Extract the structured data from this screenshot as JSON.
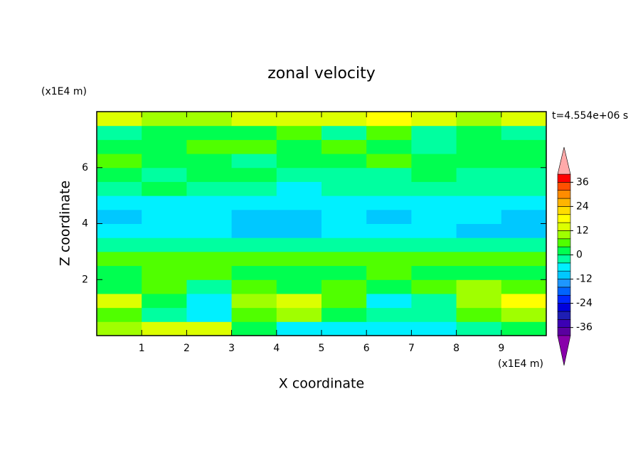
{
  "chart_data": {
    "type": "contour",
    "title": "zonal velocity",
    "xlabel": "X coordinate",
    "ylabel": "Z coordinate",
    "x_unit": "(x1E4 m)",
    "y_unit": "(x1E4 m)",
    "time_label": "t=4.554e+06 s",
    "xlim": [
      0,
      10
    ],
    "ylim": [
      0,
      8
    ],
    "xticks": [
      1,
      2,
      3,
      4,
      5,
      6,
      7,
      8,
      9
    ],
    "yticks": [
      2,
      4,
      6
    ],
    "x": [
      0.5,
      1.5,
      2.5,
      3.5,
      4.5,
      5.5,
      6.5,
      7.5,
      8.5,
      9.5
    ],
    "y": [
      0.25,
      0.75,
      1.25,
      1.75,
      2.25,
      2.75,
      3.25,
      3.75,
      4.25,
      4.75,
      5.25,
      5.75,
      6.25,
      6.75,
      7.25,
      7.75
    ],
    "z": [
      [
        10,
        14,
        12,
        2,
        -6,
        -6,
        -6,
        -8,
        -4,
        2
      ],
      [
        6,
        -2,
        -6,
        6,
        10,
        2,
        -4,
        -2,
        6,
        10
      ],
      [
        14,
        2,
        -6,
        10,
        12,
        4,
        -6,
        -2,
        10,
        16
      ],
      [
        2,
        6,
        -2,
        4,
        2,
        6,
        2,
        6,
        10,
        6
      ],
      [
        2,
        6,
        6,
        2,
        2,
        2,
        6,
        2,
        2,
        2
      ],
      [
        6,
        6,
        6,
        6,
        6,
        6,
        6,
        6,
        6,
        6
      ],
      [
        -2,
        -2,
        -2,
        -2,
        -2,
        -2,
        -2,
        -2,
        -2,
        -2
      ],
      [
        -6,
        -6,
        -6,
        -10,
        -10,
        -6,
        -6,
        -6,
        -10,
        -10
      ],
      [
        -10,
        -6,
        -6,
        -10,
        -10,
        -6,
        -10,
        -6,
        -6,
        -10
      ],
      [
        -6,
        -6,
        -6,
        -6,
        -6,
        -6,
        -6,
        -6,
        -6,
        -6
      ],
      [
        -2,
        2,
        -2,
        -2,
        -6,
        -2,
        -2,
        -2,
        -2,
        -2
      ],
      [
        2,
        -2,
        2,
        2,
        -2,
        -2,
        -2,
        2,
        -2,
        -2
      ],
      [
        6,
        2,
        2,
        -2,
        2,
        2,
        6,
        2,
        2,
        2
      ],
      [
        2,
        2,
        6,
        6,
        2,
        6,
        2,
        -2,
        2,
        2
      ],
      [
        -2,
        2,
        2,
        2,
        6,
        -2,
        6,
        -2,
        2,
        -2
      ],
      [
        14,
        10,
        10,
        14,
        14,
        14,
        18,
        14,
        10,
        14
      ]
    ],
    "levels": [
      -40,
      -36,
      -32,
      -28,
      -24,
      -20,
      -16,
      -12,
      -8,
      -4,
      0,
      4,
      8,
      12,
      16,
      20,
      24,
      28,
      32,
      36,
      40
    ],
    "colors": [
      "#5a00a0",
      "#3c00b4",
      "#1e1eb4",
      "#0000dc",
      "#0028ff",
      "#0064ff",
      "#1e96ff",
      "#00c8ff",
      "#00f0ff",
      "#00ffa0",
      "#00ff50",
      "#50ff00",
      "#a0ff00",
      "#dcff00",
      "#ffff00",
      "#ffdc00",
      "#ffb400",
      "#ff8c00",
      "#ff5000",
      "#ff0000"
    ],
    "extend_colors": [
      "#8800aa",
      "#ffaaaa"
    ],
    "colorbar_ticks": [
      -36,
      -24,
      -12,
      0,
      12,
      24,
      36
    ]
  }
}
